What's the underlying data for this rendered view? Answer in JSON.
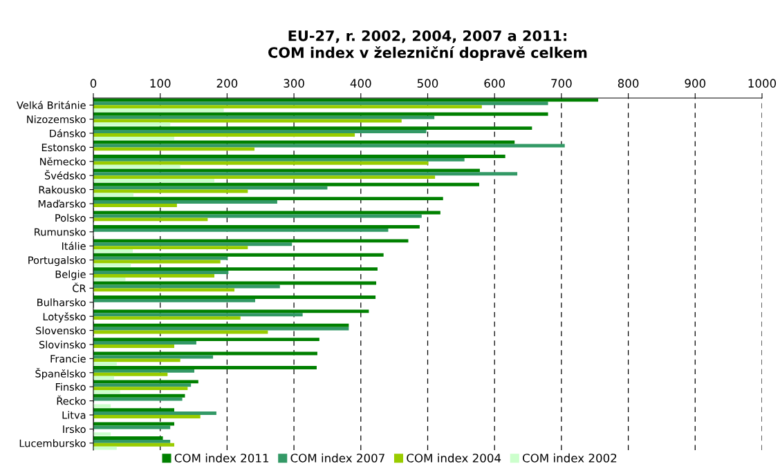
{
  "chart_data": {
    "type": "bar",
    "orientation": "horizontal",
    "title": "EU-27, r. 2002, 2004, 2007 a 2011:\nCOM index v železniční dopravě celkem",
    "categories": [
      "Velká Británie",
      "Nizozemsko",
      "Dánsko",
      "Estonsko",
      "Německo",
      "Švédsko",
      "Rakousko",
      "Maďarsko",
      "Polsko",
      "Rumunsko",
      "Itálie",
      "Portugalsko",
      "Belgie",
      "ČR",
      "Bulharsko",
      "Lotyšsko",
      "Slovensko",
      "Slovinsko",
      "Francie",
      "Španělsko",
      "Finsko",
      "Řecko",
      "Litva",
      "Irsko",
      "Lucembursko"
    ],
    "series": [
      {
        "name": "COM index 2011",
        "color": "#008000",
        "values": [
          755,
          680,
          656,
          630,
          616,
          578,
          577,
          523,
          519,
          488,
          471,
          434,
          425,
          423,
          422,
          412,
          382,
          338,
          335,
          334,
          157,
          137,
          121,
          121,
          104
        ]
      },
      {
        "name": "COM index 2007",
        "color": "#339966",
        "values": [
          680,
          510,
          498,
          705,
          555,
          634,
          350,
          275,
          491,
          441,
          297,
          201,
          202,
          279,
          242,
          313,
          382,
          154,
          179,
          151,
          146,
          133,
          184,
          115,
          115
        ]
      },
      {
        "name": "COM index 2004",
        "color": "#99cc00",
        "values": [
          581,
          461,
          391,
          241,
          501,
          511,
          231,
          125,
          171,
          null,
          231,
          190,
          181,
          211,
          null,
          220,
          261,
          121,
          130,
          111,
          141,
          null,
          160,
          null,
          121
        ]
      },
      {
        "name": "COM index 2002",
        "color": "#ccffcc",
        "values": [
          195,
          115,
          121,
          null,
          130,
          181,
          60,
          null,
          null,
          null,
          59,
          56,
          48,
          null,
          null,
          null,
          null,
          null,
          35,
          31,
          40,
          26,
          null,
          26,
          35
        ]
      }
    ],
    "xlim": [
      0,
      1000
    ],
    "xticks": [
      0,
      100,
      200,
      300,
      400,
      500,
      600,
      700,
      800,
      900,
      1000
    ],
    "grid": "x",
    "legend": "bottom"
  }
}
